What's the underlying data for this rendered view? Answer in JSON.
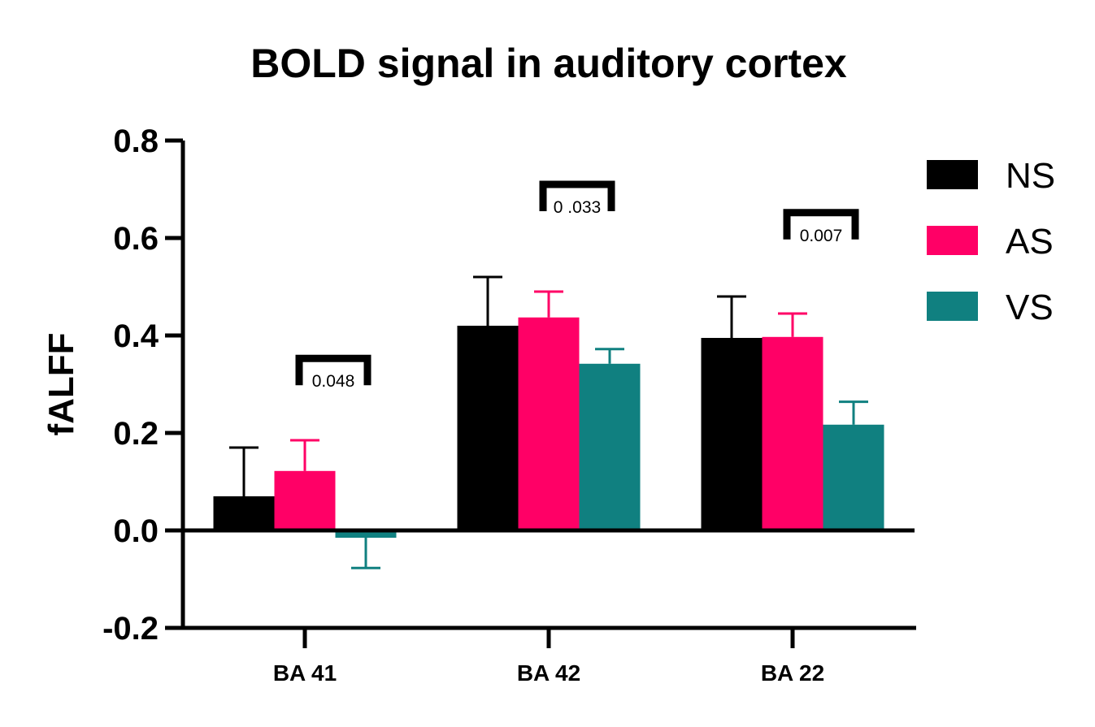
{
  "chart_data": {
    "type": "bar",
    "title": "BOLD signal in auditory cortex",
    "ylabel": "fALFF",
    "xlabel": "",
    "ylim": [
      -0.2,
      0.8
    ],
    "yticks": [
      "-0.2",
      "0.0",
      "0.2",
      "0.4",
      "0.6",
      "0.8"
    ],
    "yticks_values": [
      -0.2,
      0.0,
      0.2,
      0.4,
      0.6,
      0.8
    ],
    "categories": [
      "BA 41",
      "BA 42",
      "BA 22"
    ],
    "series": [
      {
        "name": "NS",
        "color": "#000000",
        "values": [
          0.07,
          0.42,
          0.395
        ],
        "errors": [
          0.1,
          0.1,
          0.085
        ]
      },
      {
        "name": "AS",
        "color": "#FF0066",
        "values": [
          0.122,
          0.437,
          0.397
        ],
        "errors": [
          0.063,
          0.053,
          0.048
        ]
      },
      {
        "name": "VS",
        "color": "#108080",
        "values": [
          -0.015,
          0.342,
          0.217
        ],
        "errors": [
          0.062,
          0.03,
          0.047
        ]
      }
    ],
    "annotations": [
      {
        "category": "BA 41",
        "text": "0.048",
        "y": 0.353
      },
      {
        "category": "BA 42",
        "text": "0 .033",
        "y": 0.71
      },
      {
        "category": "BA 22",
        "text": "0.007",
        "y": 0.652
      }
    ],
    "legend_position": "top-right",
    "grid": false
  }
}
